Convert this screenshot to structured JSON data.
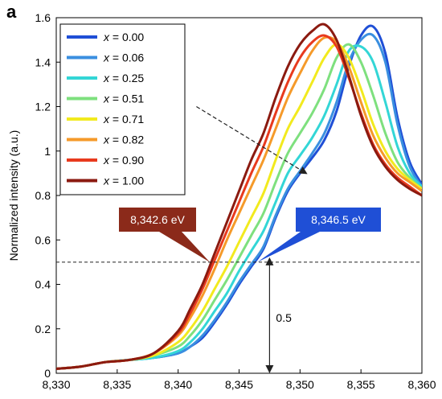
{
  "panel_label": "a",
  "chart_data": {
    "type": "line",
    "xlabel": "",
    "ylabel": "Normalized intensity (a.u.)",
    "xlim": [
      8330,
      8360
    ],
    "ylim": [
      0,
      1.6
    ],
    "x_ticks": [
      8330,
      8335,
      8340,
      8345,
      8350,
      8355,
      8360
    ],
    "x_tick_labels": [
      "8,330",
      "8,335",
      "8,340",
      "8,345",
      "8,350",
      "8,355",
      "8,360"
    ],
    "y_ticks": [
      0,
      0.2,
      0.4,
      0.6,
      0.8,
      1,
      1.2,
      1.4,
      1.6
    ],
    "y_tick_labels": [
      "0",
      "0.2",
      "0.4",
      "0.6",
      "0.8",
      "1",
      "1.2",
      "1.4",
      "1.6"
    ],
    "grid": false,
    "legend_position": "top-left",
    "series": [
      {
        "name": "x = 0.00",
        "color": "#1f4fd6",
        "x": [
          8330,
          8332,
          8334,
          8336,
          8338,
          8340,
          8341,
          8342,
          8343,
          8344,
          8345,
          8346,
          8347,
          8348,
          8349,
          8350,
          8351,
          8352,
          8353,
          8354,
          8355,
          8356,
          8357,
          8358,
          8359,
          8360
        ],
        "y": [
          0.02,
          0.03,
          0.05,
          0.06,
          0.07,
          0.09,
          0.12,
          0.16,
          0.23,
          0.31,
          0.4,
          0.48,
          0.56,
          0.7,
          0.82,
          0.9,
          0.97,
          1.05,
          1.18,
          1.38,
          1.52,
          1.56,
          1.44,
          1.15,
          0.95,
          0.85
        ]
      },
      {
        "name": "x = 0.06",
        "color": "#3a8fe0",
        "x": [
          8330,
          8332,
          8334,
          8336,
          8338,
          8340,
          8341,
          8342,
          8343,
          8344,
          8345,
          8346,
          8347,
          8348,
          8349,
          8350,
          8351,
          8352,
          8353,
          8354,
          8355,
          8356,
          8357,
          8358,
          8359,
          8360
        ],
        "y": [
          0.02,
          0.03,
          0.05,
          0.06,
          0.07,
          0.09,
          0.12,
          0.17,
          0.24,
          0.32,
          0.41,
          0.49,
          0.57,
          0.71,
          0.83,
          0.91,
          0.99,
          1.08,
          1.22,
          1.4,
          1.5,
          1.52,
          1.4,
          1.12,
          0.93,
          0.84
        ]
      },
      {
        "name": "x = 0.25",
        "color": "#33d6d6",
        "x": [
          8330,
          8332,
          8334,
          8336,
          8338,
          8340,
          8341,
          8342,
          8343,
          8344,
          8345,
          8346,
          8347,
          8348,
          8349,
          8350,
          8351,
          8352,
          8353,
          8354,
          8355,
          8356,
          8357,
          8358,
          8359,
          8360
        ],
        "y": [
          0.02,
          0.03,
          0.05,
          0.06,
          0.07,
          0.1,
          0.14,
          0.2,
          0.28,
          0.36,
          0.46,
          0.55,
          0.64,
          0.77,
          0.9,
          0.98,
          1.06,
          1.16,
          1.3,
          1.45,
          1.47,
          1.4,
          1.22,
          1.02,
          0.9,
          0.84
        ]
      },
      {
        "name": "x = 0.51",
        "color": "#7ee07e",
        "x": [
          8330,
          8332,
          8334,
          8336,
          8338,
          8340,
          8341,
          8342,
          8343,
          8344,
          8345,
          8346,
          8347,
          8348,
          8349,
          8350,
          8351,
          8352,
          8353,
          8354,
          8355,
          8356,
          8357,
          8358,
          8359,
          8360
        ],
        "y": [
          0.02,
          0.03,
          0.05,
          0.06,
          0.08,
          0.12,
          0.17,
          0.24,
          0.33,
          0.42,
          0.52,
          0.62,
          0.72,
          0.86,
          0.99,
          1.08,
          1.17,
          1.28,
          1.42,
          1.48,
          1.4,
          1.25,
          1.08,
          0.95,
          0.88,
          0.83
        ]
      },
      {
        "name": "x = 0.71",
        "color": "#f2ea1e",
        "x": [
          8330,
          8332,
          8334,
          8336,
          8338,
          8340,
          8341,
          8342,
          8343,
          8344,
          8345,
          8346,
          8347,
          8348,
          8349,
          8350,
          8351,
          8352,
          8353,
          8354,
          8355,
          8356,
          8357,
          8358,
          8359,
          8360
        ],
        "y": [
          0.02,
          0.03,
          0.05,
          0.06,
          0.08,
          0.14,
          0.2,
          0.28,
          0.38,
          0.48,
          0.59,
          0.7,
          0.81,
          0.96,
          1.1,
          1.2,
          1.31,
          1.42,
          1.48,
          1.42,
          1.28,
          1.12,
          1.0,
          0.92,
          0.87,
          0.83
        ]
      },
      {
        "name": "x = 0.82",
        "color": "#f59a2a",
        "x": [
          8330,
          8332,
          8334,
          8336,
          8338,
          8340,
          8341,
          8342,
          8343,
          8344,
          8345,
          8346,
          8347,
          8348,
          8349,
          8350,
          8351,
          8352,
          8353,
          8354,
          8355,
          8356,
          8357,
          8358,
          8359,
          8360
        ],
        "y": [
          0.02,
          0.03,
          0.05,
          0.06,
          0.09,
          0.17,
          0.25,
          0.35,
          0.47,
          0.6,
          0.72,
          0.84,
          0.96,
          1.1,
          1.24,
          1.35,
          1.45,
          1.51,
          1.49,
          1.38,
          1.22,
          1.07,
          0.97,
          0.9,
          0.86,
          0.82
        ]
      },
      {
        "name": "x = 0.90",
        "color": "#e83a1e",
        "x": [
          8330,
          8332,
          8334,
          8336,
          8338,
          8340,
          8341,
          8342,
          8343,
          8344,
          8345,
          8346,
          8347,
          8348,
          8349,
          8350,
          8351,
          8352,
          8353,
          8354,
          8355,
          8356,
          8357,
          8358,
          8359,
          8360
        ],
        "y": [
          0.02,
          0.03,
          0.05,
          0.06,
          0.09,
          0.18,
          0.27,
          0.38,
          0.51,
          0.64,
          0.77,
          0.9,
          1.02,
          1.17,
          1.31,
          1.42,
          1.49,
          1.52,
          1.47,
          1.33,
          1.17,
          1.03,
          0.94,
          0.88,
          0.84,
          0.8
        ]
      },
      {
        "name": "x = 1.00",
        "color": "#8b1a10",
        "x": [
          8330,
          8332,
          8334,
          8336,
          8338,
          8340,
          8341,
          8342,
          8343,
          8344,
          8345,
          8346,
          8347,
          8348,
          8349,
          8350,
          8351,
          8352,
          8353,
          8354,
          8355,
          8356,
          8357,
          8358,
          8359,
          8360
        ],
        "y": [
          0.02,
          0.03,
          0.05,
          0.06,
          0.09,
          0.19,
          0.29,
          0.4,
          0.54,
          0.68,
          0.82,
          0.96,
          1.08,
          1.24,
          1.38,
          1.48,
          1.54,
          1.57,
          1.5,
          1.34,
          1.16,
          1.02,
          0.93,
          0.87,
          0.83,
          0.8
        ]
      }
    ],
    "reference_line": {
      "y": 0.5,
      "style": "dashed"
    },
    "annotations": [
      {
        "text": "8,342.6 eV",
        "x": 8342.6,
        "y": 0.5,
        "color": "#8b2a1a"
      },
      {
        "text": "8,346.5 eV",
        "x": 8346.5,
        "y": 0.5,
        "color": "#1f4fd6"
      },
      {
        "text": "0.5",
        "x": 8347.5,
        "y": 0.25
      }
    ],
    "trend_arrow": {
      "from": [
        8341.5,
        1.2
      ],
      "to": [
        8350.5,
        0.9
      ],
      "style": "dashed"
    },
    "height_arrow": {
      "x": 8347.5,
      "from": 0,
      "to": 0.5
    }
  }
}
